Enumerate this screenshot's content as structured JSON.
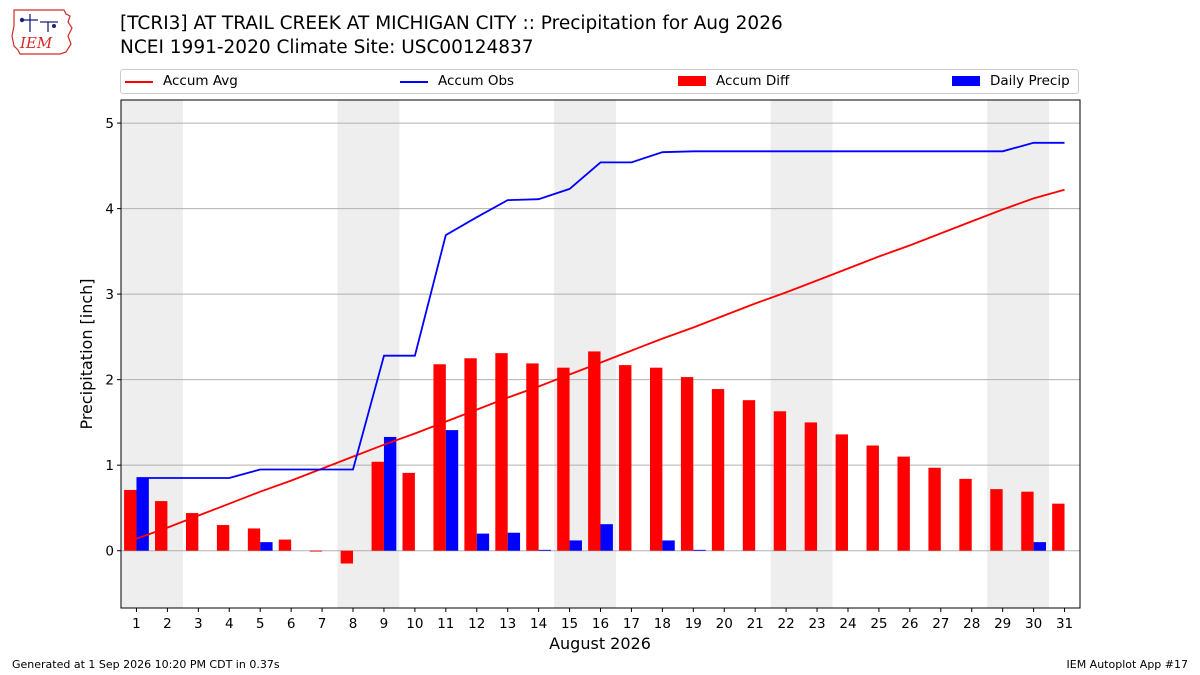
{
  "header": {
    "title_line1": "[TCRI3] AT TRAIL CREEK AT MICHIGAN CITY :: Precipitation for Aug 2026",
    "title_line2": "NCEI 1991-2020 Climate Site: USC00124837",
    "logo_text": "IEM"
  },
  "footer": {
    "left": "Generated at 1 Sep 2026 10:20 PM CDT in 0.37s",
    "right": "IEM Autoplot App #17"
  },
  "colors": {
    "accum_avg": "#ff0000",
    "accum_obs": "#0000ff",
    "accum_diff": "#ff0000",
    "daily_precip": "#0000ff",
    "weekend_band": "#eeeeee",
    "grid": "#b0b0b0"
  },
  "chart_data": {
    "type": "bar",
    "xlabel": "August 2026",
    "ylabel": "Precipitation [inch]",
    "x": [
      1,
      2,
      3,
      4,
      5,
      6,
      7,
      8,
      9,
      10,
      11,
      12,
      13,
      14,
      15,
      16,
      17,
      18,
      19,
      20,
      21,
      22,
      23,
      24,
      25,
      26,
      27,
      28,
      29,
      30,
      31
    ],
    "xlim": [
      0.5,
      31.5
    ],
    "ylim": [
      -0.67,
      5.27
    ],
    "yticks": [
      0,
      1,
      2,
      3,
      4,
      5
    ],
    "grid": "horizontal",
    "legend_placement": "top",
    "weekend_days": [
      1,
      2,
      8,
      9,
      15,
      16,
      22,
      23,
      29,
      30
    ],
    "series": [
      {
        "name": "Accum Avg",
        "type": "line",
        "values": [
          0.14,
          0.27,
          0.41,
          0.55,
          0.69,
          0.82,
          0.96,
          1.1,
          1.24,
          1.37,
          1.51,
          1.65,
          1.79,
          1.92,
          2.06,
          2.2,
          2.34,
          2.48,
          2.61,
          2.75,
          2.89,
          3.02,
          3.16,
          3.3,
          3.44,
          3.57,
          3.71,
          3.85,
          3.99,
          4.12,
          4.22
        ]
      },
      {
        "name": "Accum Obs",
        "type": "line",
        "values": [
          0.85,
          0.85,
          0.85,
          0.85,
          0.95,
          0.95,
          0.95,
          0.95,
          2.28,
          2.28,
          3.69,
          3.9,
          4.1,
          4.11,
          4.23,
          4.54,
          4.54,
          4.66,
          4.67,
          4.67,
          4.67,
          4.67,
          4.67,
          4.67,
          4.67,
          4.67,
          4.67,
          4.67,
          4.67,
          4.77,
          4.77
        ]
      },
      {
        "name": "Accum Diff",
        "type": "bar",
        "values": [
          0.71,
          0.58,
          0.44,
          0.3,
          0.26,
          0.13,
          -0.01,
          -0.15,
          1.04,
          0.91,
          2.18,
          2.25,
          2.31,
          2.19,
          2.14,
          2.33,
          2.17,
          2.14,
          2.03,
          1.89,
          1.76,
          1.63,
          1.5,
          1.36,
          1.23,
          1.1,
          0.97,
          0.84,
          0.72,
          0.69,
          0.55
        ]
      },
      {
        "name": "Daily Precip",
        "type": "bar",
        "values": [
          0.85,
          0,
          0,
          0,
          0.1,
          0,
          0,
          0,
          1.33,
          0,
          1.41,
          0.2,
          0.21,
          0.01,
          0.12,
          0.31,
          0,
          0.12,
          0.01,
          0,
          0,
          0,
          0,
          0,
          0,
          0,
          0,
          0,
          0,
          0.1,
          0
        ]
      }
    ]
  }
}
